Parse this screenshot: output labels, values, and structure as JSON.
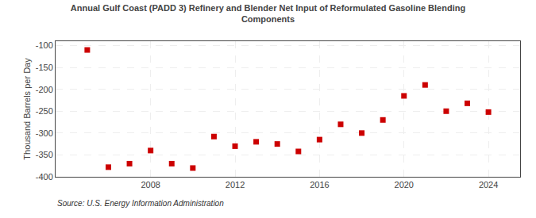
{
  "chart_data": {
    "type": "scatter",
    "title": "Annual Gulf Coast (PADD 3) Refinery and Blender Net Input of Reformulated Gasoline Blending\nComponents",
    "y_label": "Thousand Barrels per Day",
    "annotations": [
      "Source: U.S. Energy Information Administration"
    ],
    "x": [
      2005,
      2006,
      2007,
      2008,
      2009,
      2010,
      2011,
      2012,
      2013,
      2014,
      2015,
      2016,
      2017,
      2018,
      2019,
      2020,
      2021,
      2022,
      2023,
      2024
    ],
    "values": [
      -110,
      -378,
      -370,
      -340,
      -370,
      -380,
      -308,
      -330,
      -320,
      -325,
      -342,
      -315,
      -280,
      -300,
      -270,
      -215,
      -190,
      -250,
      -232,
      -252
    ],
    "color": "#cc0000",
    "marker": "square",
    "xlim": [
      2003.5,
      2025.5
    ],
    "xticks": [
      2008,
      2012,
      2016,
      2020,
      2024
    ],
    "ylim": [
      -400,
      -90
    ],
    "yticks": [
      -400,
      -350,
      -300,
      -250,
      -200,
      -150,
      -100
    ],
    "grid": true
  }
}
